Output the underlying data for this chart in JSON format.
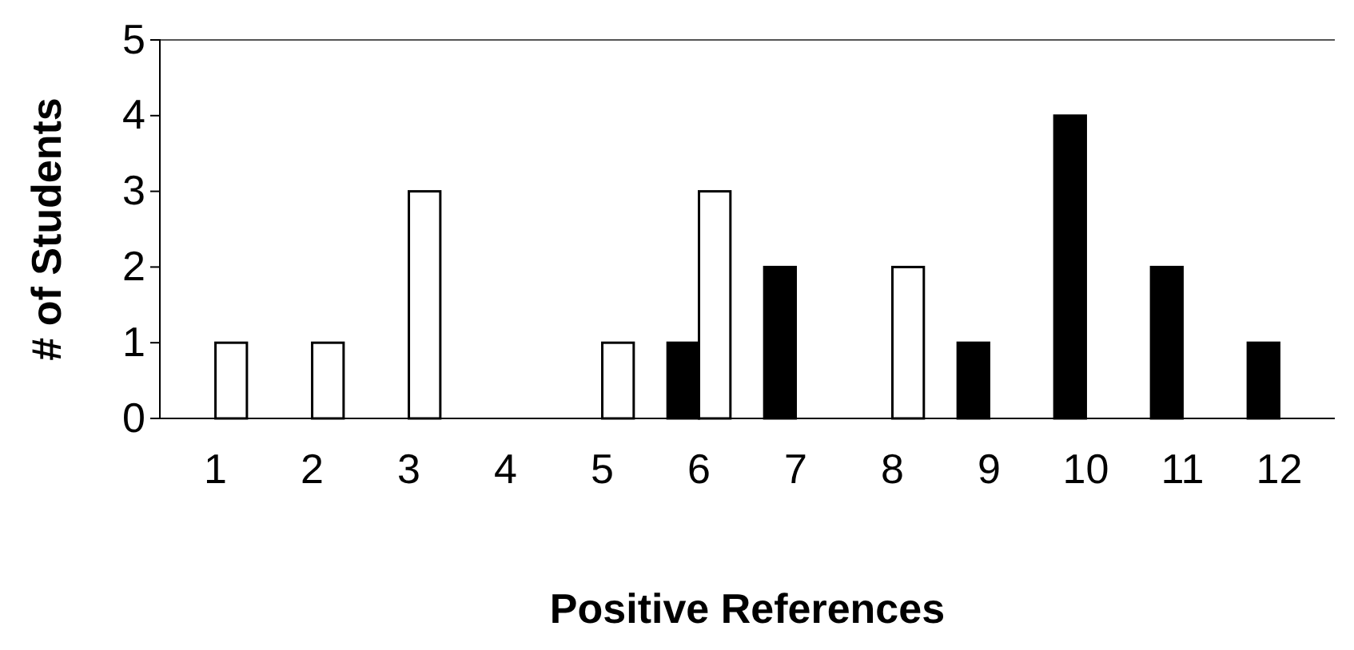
{
  "chart_data": {
    "type": "bar",
    "xlabel": "Positive References",
    "ylabel": "# of Students",
    "categories": [
      "1",
      "2",
      "3",
      "4",
      "5",
      "6",
      "7",
      "8",
      "9",
      "10",
      "11",
      "12"
    ],
    "series": [
      {
        "color": "#000000",
        "values": [
          0,
          0,
          0,
          0,
          0,
          1,
          2,
          0,
          1,
          4,
          2,
          1
        ]
      },
      {
        "color": "#ffffff",
        "values": [
          1,
          1,
          3,
          0,
          1,
          3,
          0,
          2,
          0,
          0,
          0,
          0
        ]
      }
    ],
    "ylim": [
      0,
      5
    ],
    "yticks": [
      0,
      1,
      2,
      3,
      4,
      5
    ],
    "grid": false
  }
}
